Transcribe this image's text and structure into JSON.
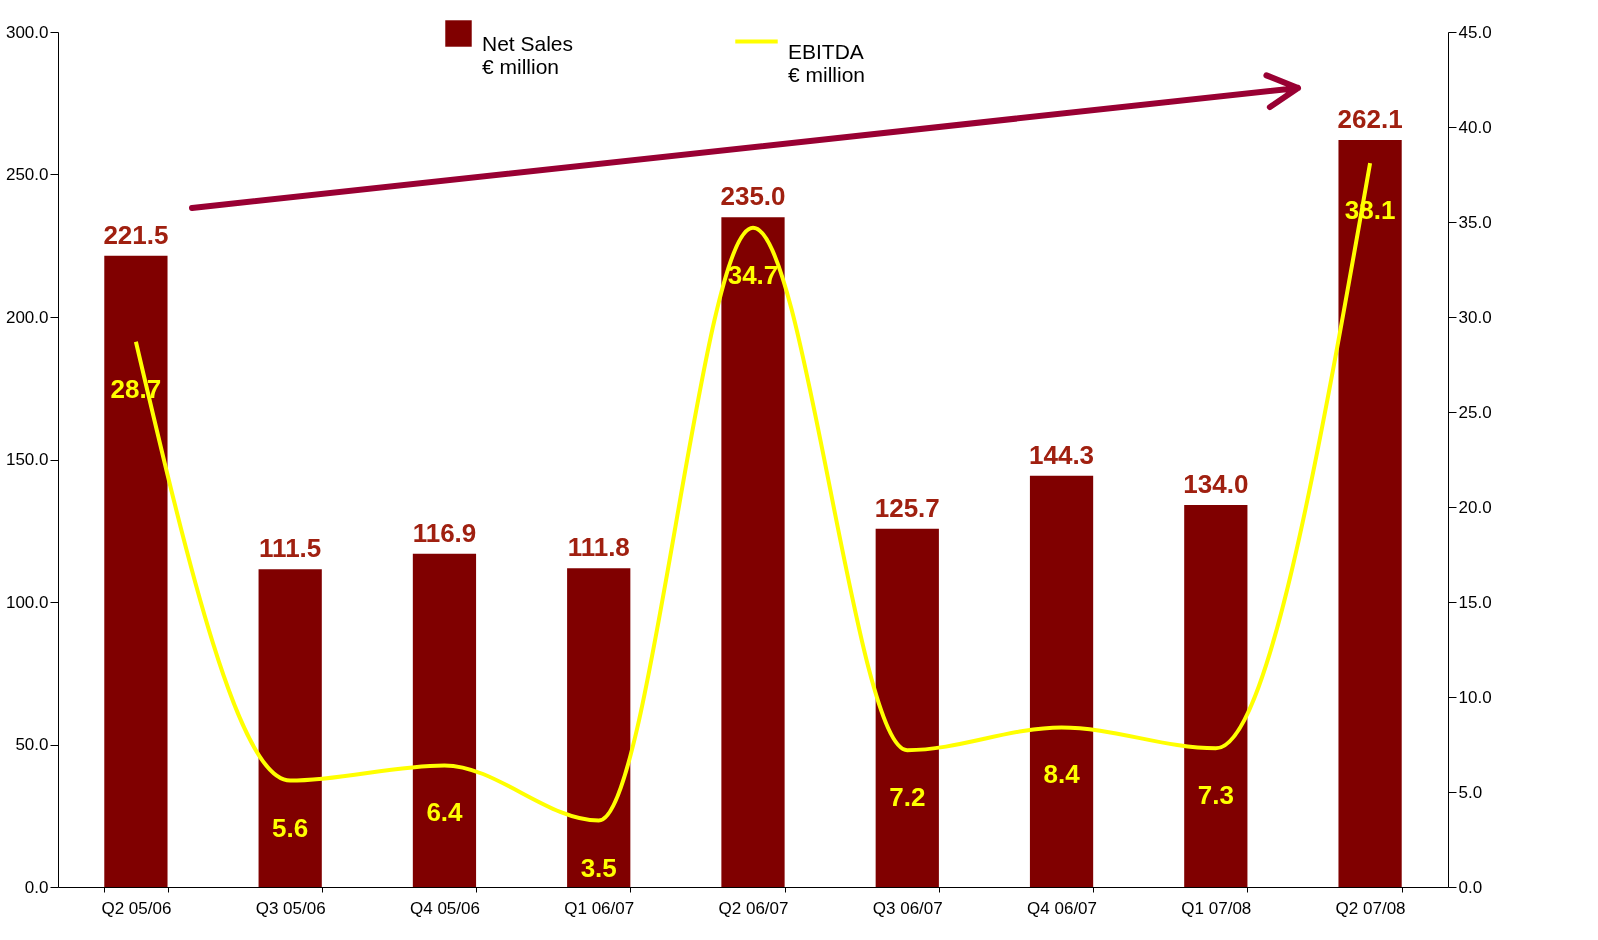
{
  "chart_data": {
    "type": "bar",
    "categories": [
      "Q2 05/06",
      "Q3 05/06",
      "Q4 05/06",
      "Q1 06/07",
      "Q2 06/07",
      "Q3 06/07",
      "Q4 06/07",
      "Q1 07/08",
      "Q2 07/08"
    ],
    "series": [
      {
        "name": "Net Sales\n€ million",
        "color": "#800000",
        "values": [
          221.5,
          111.5,
          116.9,
          111.8,
          235.0,
          125.7,
          144.3,
          134.0,
          262.1
        ],
        "value_labels": [
          "221.5",
          "111.5",
          "116.9",
          "111.8",
          "235.0",
          "125.7",
          "144.3",
          "134.0",
          "262.1"
        ]
      },
      {
        "name": "EBITDA\n€ million",
        "type": "line",
        "axis": "y2",
        "color": "#ffff00",
        "values": [
          28.7,
          5.6,
          6.4,
          3.5,
          34.7,
          7.2,
          8.4,
          7.3,
          38.1
        ]
      }
    ],
    "ylim": [
      0,
      300
    ],
    "yticks": [
      {
        "value": 0,
        "label": "0.0"
      },
      {
        "value": 50,
        "label": "50.0"
      },
      {
        "value": 100,
        "label": "100.0"
      },
      {
        "value": 150,
        "label": "150.0"
      },
      {
        "value": 200,
        "label": "200.0"
      },
      {
        "value": 250,
        "label": "250.0"
      },
      {
        "value": 300,
        "label": "300.0"
      }
    ],
    "y2lim": [
      0,
      45
    ],
    "y2ticks": [
      {
        "value": 0,
        "label": "0.0"
      },
      {
        "value": 5,
        "label": "5.0"
      },
      {
        "value": 10,
        "label": "10.0"
      },
      {
        "value": 15,
        "label": "15.0"
      },
      {
        "value": 20,
        "label": "20.0"
      },
      {
        "value": 25,
        "label": "25.0"
      },
      {
        "value": 30,
        "label": "30.0"
      },
      {
        "value": 35,
        "label": "35.0"
      },
      {
        "value": 40,
        "label": "40.0"
      },
      {
        "value": 45,
        "label": "45.0"
      }
    ],
    "data_labels": true,
    "legend": "top",
    "grid": false
  }
}
